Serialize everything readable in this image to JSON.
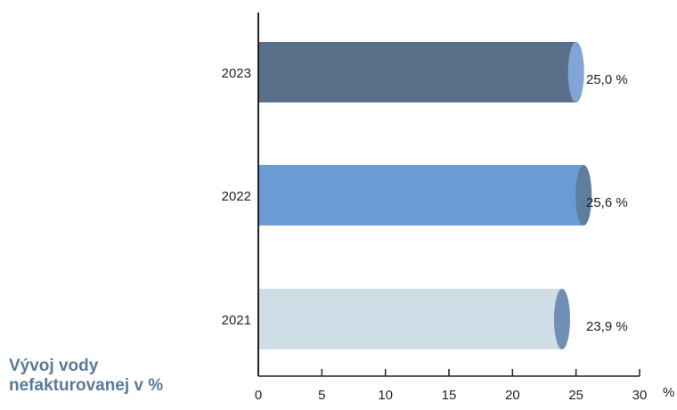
{
  "caption": {
    "line1": "Vývoj vody",
    "line2": "nefakturovanej v %"
  },
  "chart_data": {
    "type": "bar",
    "orientation": "horizontal",
    "categories": [
      "2023",
      "2022",
      "2021"
    ],
    "values": [
      25.0,
      25.6,
      23.9
    ],
    "value_labels": [
      "25,0 %",
      "25,6 %",
      "23,9 %"
    ],
    "bar_colors": [
      "#5a6f8a",
      "#6b9bd3",
      "#cfdde7"
    ],
    "cap_colors": [
      "#7fa6d4",
      "#5f7d9c",
      "#6f8fb4"
    ],
    "xlim": [
      0,
      30
    ],
    "xticks": [
      "0",
      "5",
      "10",
      "15",
      "20",
      "25",
      "30"
    ],
    "x_unit": "%",
    "grid": false
  }
}
